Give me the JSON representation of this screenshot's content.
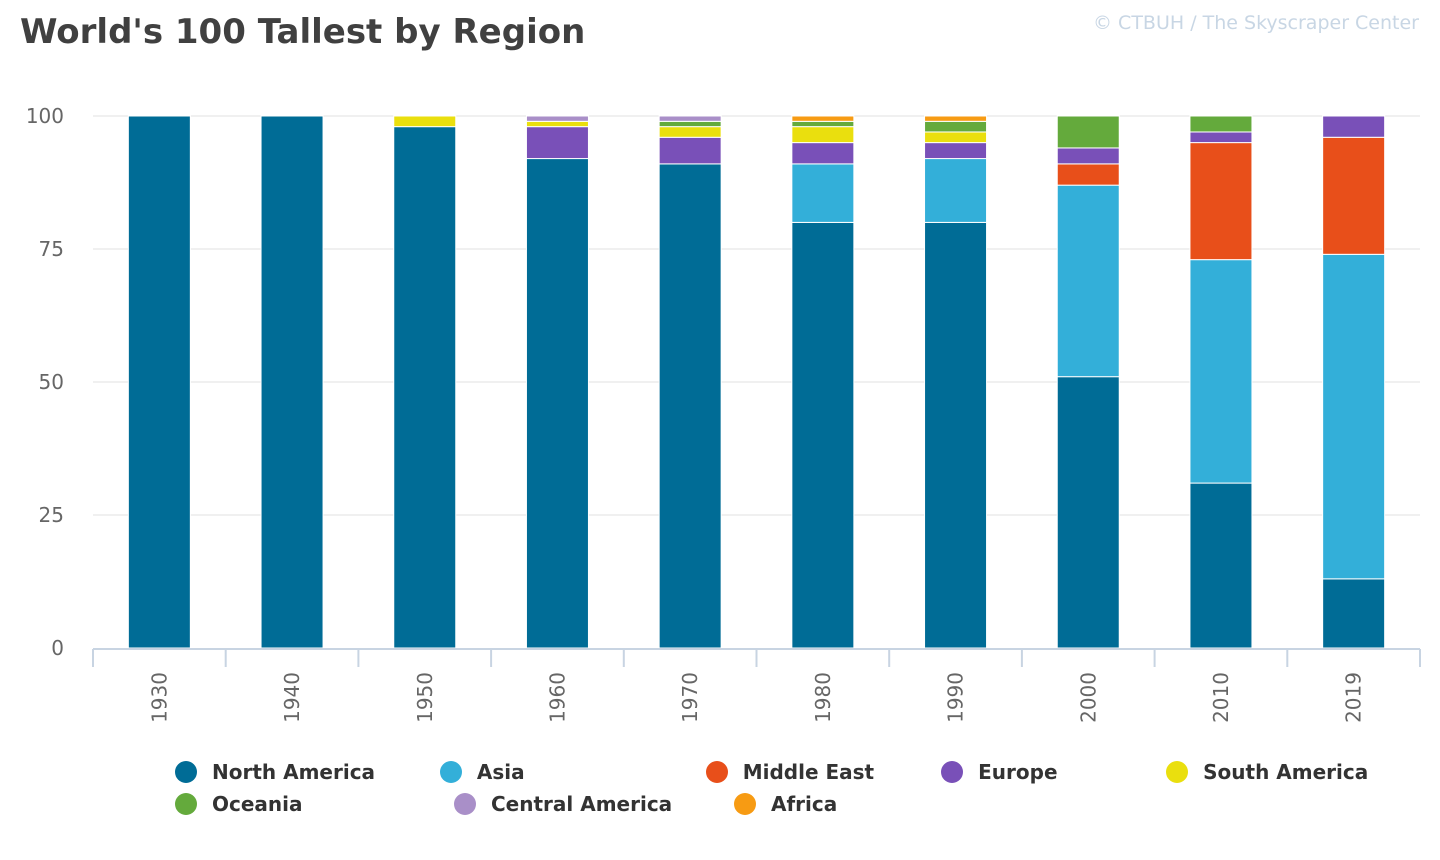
{
  "chart_data": {
    "type": "bar",
    "stacked": true,
    "title": "World's 100 Tallest by Region",
    "credit": "© CTBUH / The Skyscraper Center",
    "categories": [
      "1930",
      "1940",
      "1950",
      "1960",
      "1970",
      "1980",
      "1990",
      "2000",
      "2010",
      "2019"
    ],
    "ylim": [
      0,
      100
    ],
    "yticks": [
      "0",
      "25",
      "50",
      "75",
      "100"
    ],
    "grid": true,
    "legend_position": "bottom",
    "series": [
      {
        "name": "North America",
        "color": "#006c96",
        "values": [
          100,
          100,
          98,
          92,
          91,
          80,
          80,
          51,
          31,
          13
        ]
      },
      {
        "name": "Asia",
        "color": "#33afd9",
        "values": [
          0,
          0,
          0,
          0,
          0,
          11,
          12,
          36,
          42,
          61
        ]
      },
      {
        "name": "Middle East",
        "color": "#e84f1a",
        "values": [
          0,
          0,
          0,
          0,
          0,
          0,
          0,
          4,
          22,
          22
        ]
      },
      {
        "name": "Europe",
        "color": "#7950b8",
        "values": [
          0,
          0,
          0,
          6,
          5,
          4,
          3,
          3,
          2,
          4
        ]
      },
      {
        "name": "South America",
        "color": "#eadf0e",
        "values": [
          0,
          0,
          2,
          1,
          2,
          3,
          2,
          0,
          0,
          0
        ]
      },
      {
        "name": "Oceania",
        "color": "#64aa3c",
        "values": [
          0,
          0,
          0,
          0,
          1,
          1,
          2,
          6,
          3,
          0
        ]
      },
      {
        "name": "Central America",
        "color": "#a98fc8",
        "values": [
          0,
          0,
          0,
          1,
          1,
          0,
          0,
          0,
          0,
          0
        ]
      },
      {
        "name": "Africa",
        "color": "#f79b13",
        "values": [
          0,
          0,
          0,
          0,
          0,
          1,
          1,
          0,
          0,
          0
        ]
      }
    ]
  },
  "legend_rows": [
    [
      "North America",
      "Asia",
      "Middle East",
      "Europe",
      "South America"
    ],
    [
      "Oceania",
      "Central America",
      "Africa"
    ]
  ]
}
